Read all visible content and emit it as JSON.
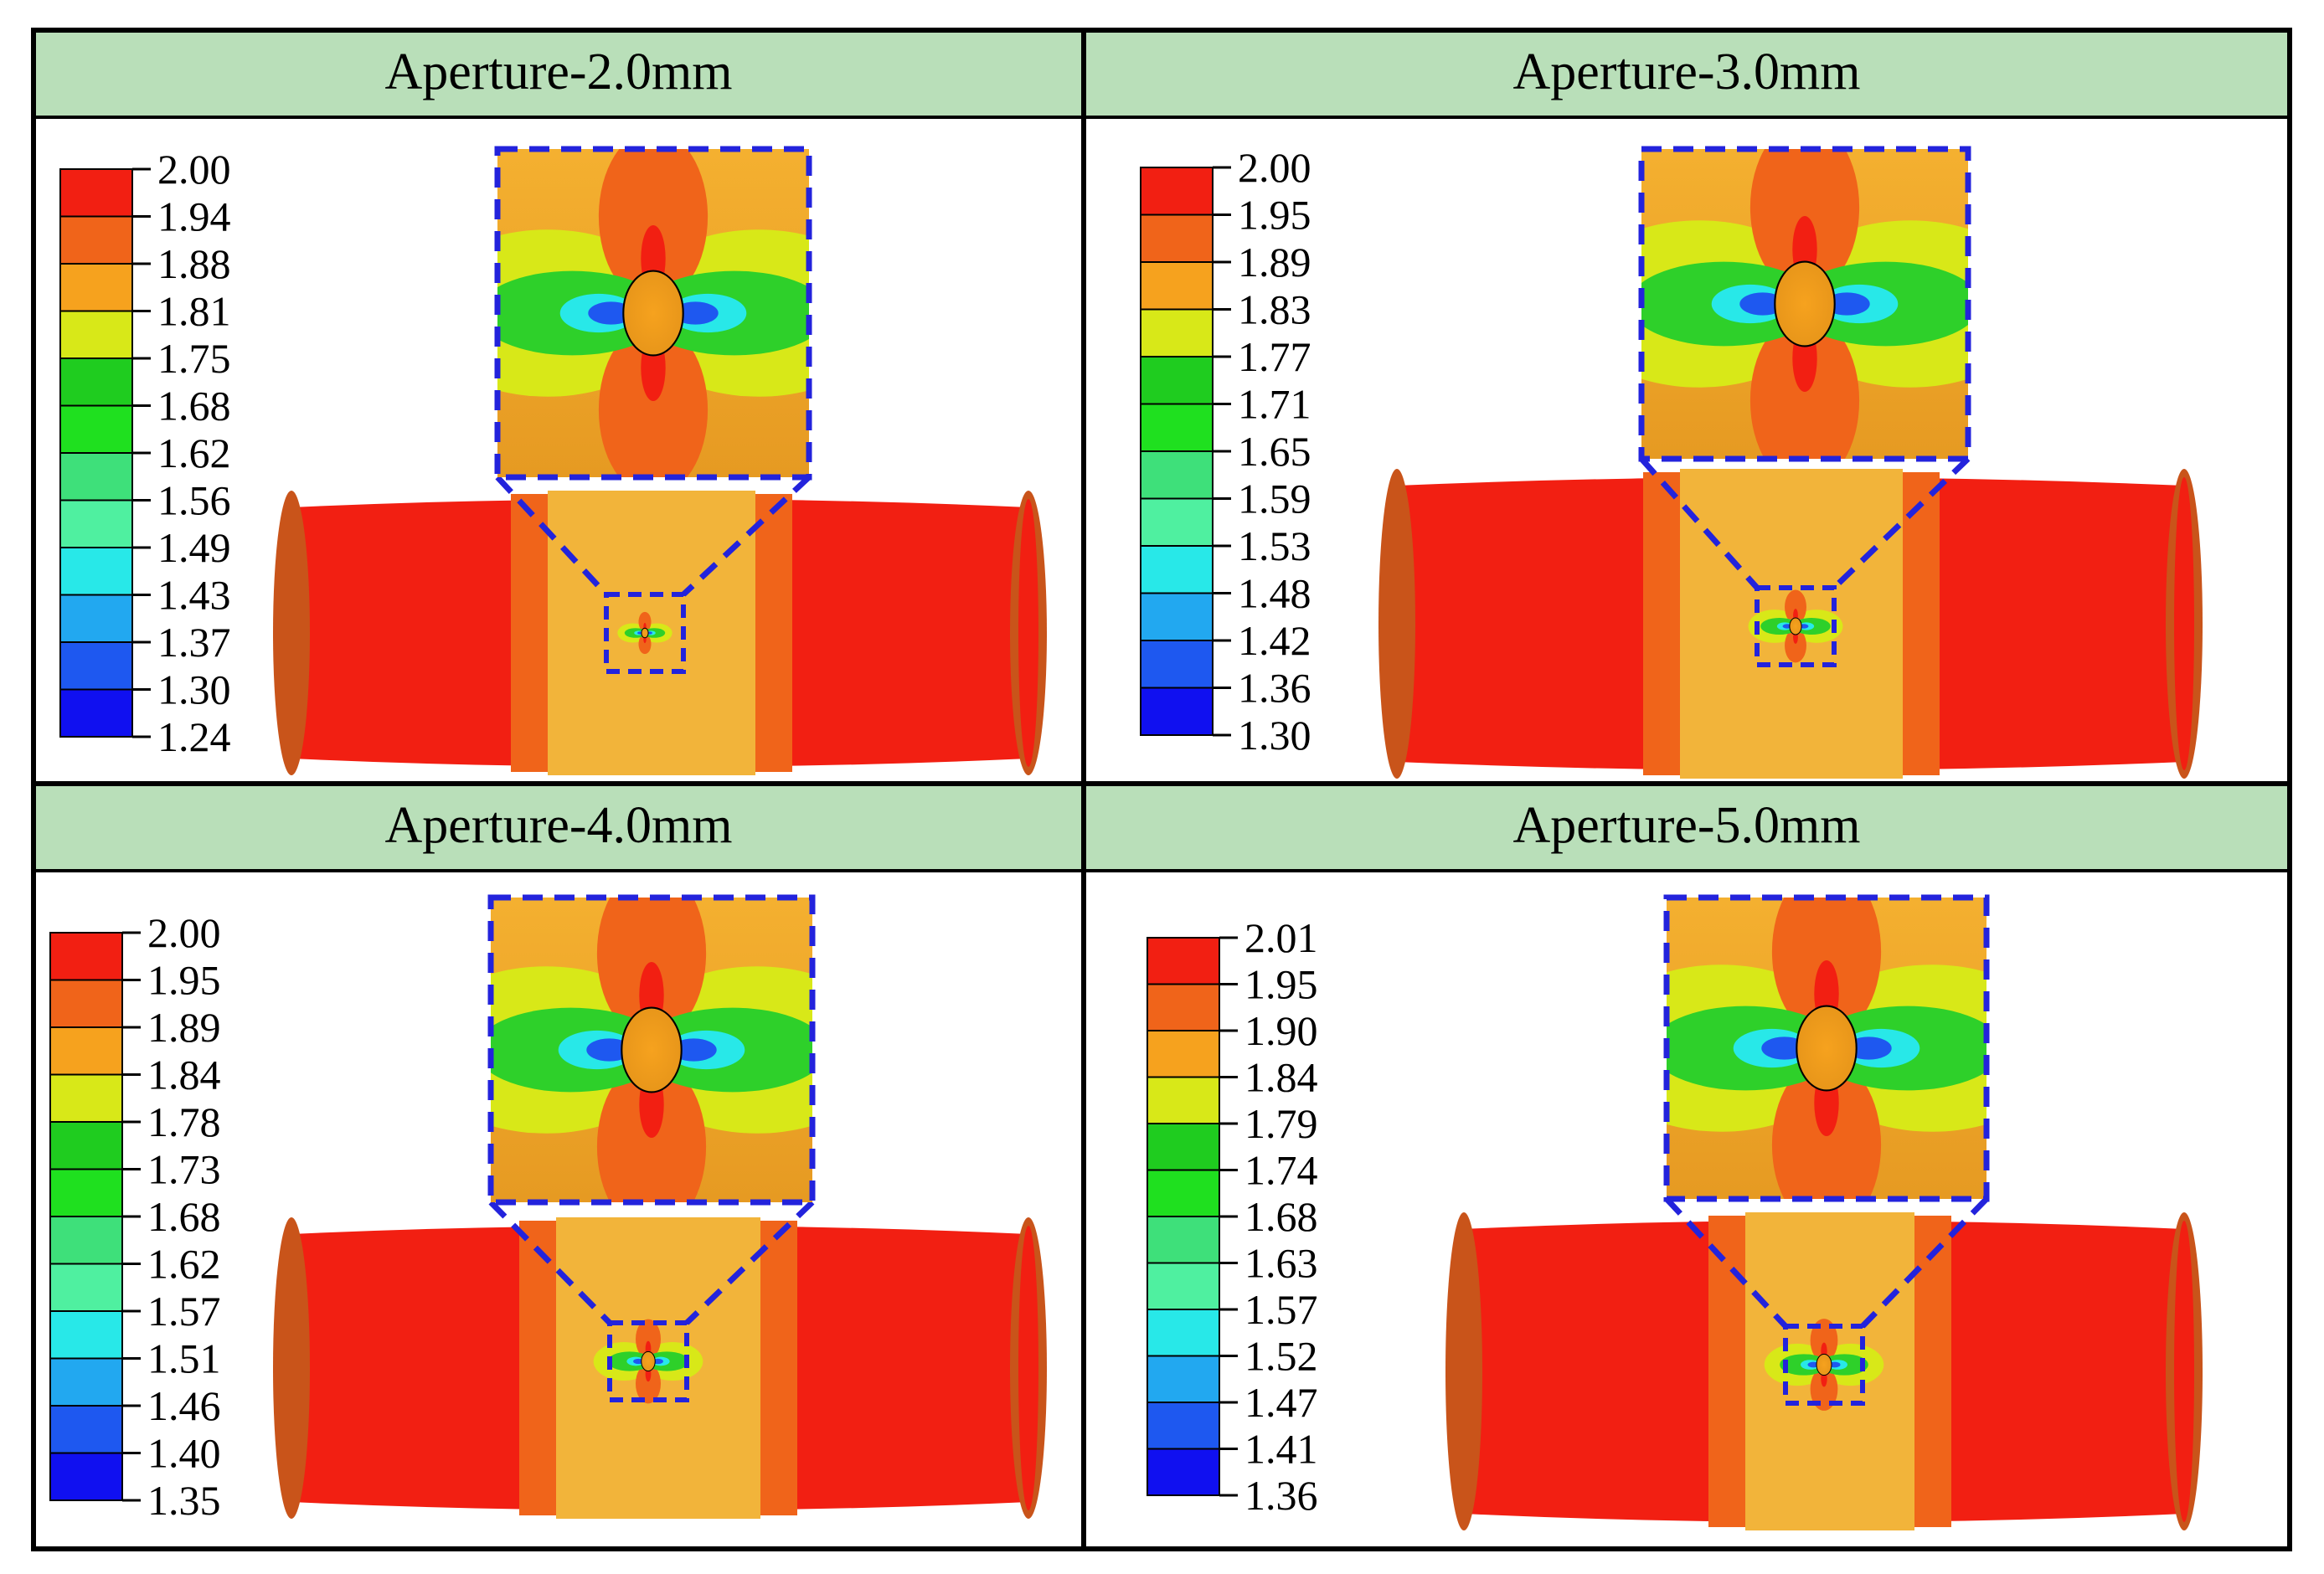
{
  "colors": {
    "frame": "#000000",
    "title_bg": "#b9dfb9",
    "zoom_outline": "#2323dc",
    "pipe_dark": "#c9541a",
    "red": "#f21f12",
    "orange_red": "#f0641a",
    "orange": "#f6a21e",
    "orange_light": "#f2b43a",
    "yellow_green": "#c6d21e",
    "yellow": "#d8e818",
    "green": "#2ed02a",
    "green_light": "#3ee07a",
    "cyan_green": "#4ff0a0",
    "cyan": "#28e8e8",
    "sky": "#22a8f0",
    "blue": "#1e58f0",
    "deep_blue": "#1010f0"
  },
  "panels": [
    {
      "title": "Aperture-2.0mm",
      "legend_values": [
        "2.00",
        "1.94",
        "1.88",
        "1.81",
        "1.75",
        "1.68",
        "1.62",
        "1.56",
        "1.49",
        "1.43",
        "1.37",
        "1.30",
        "1.24"
      ]
    },
    {
      "title": "Aperture-3.0mm",
      "legend_values": [
        "2.00",
        "1.95",
        "1.89",
        "1.83",
        "1.77",
        "1.71",
        "1.65",
        "1.59",
        "1.53",
        "1.48",
        "1.42",
        "1.36",
        "1.30"
      ]
    },
    {
      "title": "Aperture-4.0mm",
      "legend_values": [
        "2.00",
        "1.95",
        "1.89",
        "1.84",
        "1.78",
        "1.73",
        "1.68",
        "1.62",
        "1.57",
        "1.51",
        "1.46",
        "1.40",
        "1.35"
      ]
    },
    {
      "title": "Aperture-5.0mm",
      "legend_values": [
        "2.01",
        "1.95",
        "1.90",
        "1.84",
        "1.79",
        "1.74",
        "1.68",
        "1.63",
        "1.57",
        "1.52",
        "1.47",
        "1.41",
        "1.36"
      ]
    }
  ],
  "legend_colors": [
    "#f21f12",
    "#f0641a",
    "#f6a21e",
    "#d8e818",
    "#1fcc1f",
    "#1fe01f",
    "#3ee07a",
    "#4ff0a0",
    "#28e8e8",
    "#22a8f0",
    "#1e58f0",
    "#1010f0"
  ]
}
